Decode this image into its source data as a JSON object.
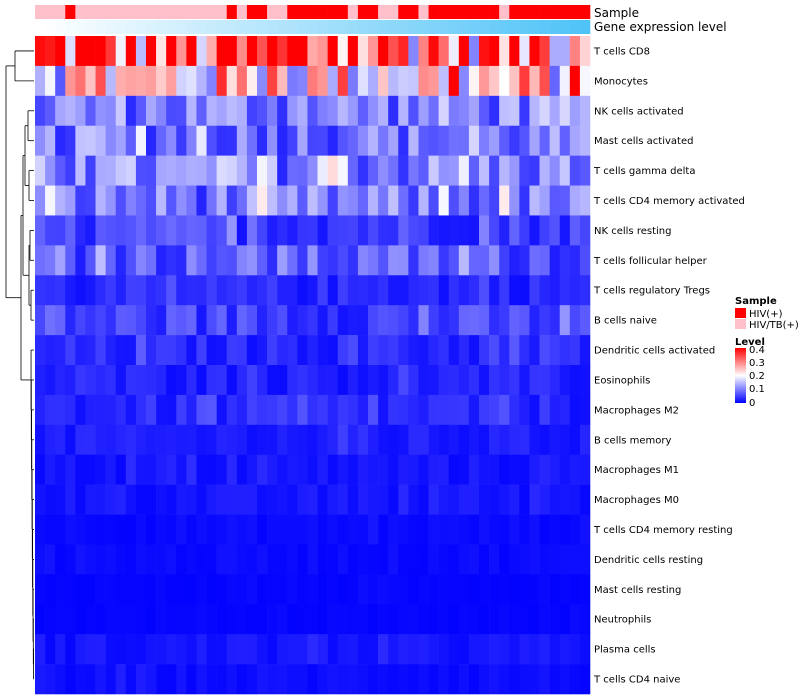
{
  "chart_data": {
    "type": "heatmap",
    "annotations": {
      "sample_label": "Sample",
      "expression_label": "Gene expression level"
    },
    "rows": [
      "T cells CD8",
      "Monocytes",
      "NK cells activated",
      "Mast cells activated",
      "T cells gamma delta",
      "T cells CD4 memory activated",
      "NK cells resting",
      "T cells follicular helper",
      "T cells regulatory  Tregs",
      "B cells naive",
      "Dendritic cells activated",
      "Eosinophils",
      "Macrophages M2",
      "B cells memory",
      "Macrophages M1",
      "Macrophages M0",
      "T cells CD4 memory resting",
      "Dendritic cells resting",
      "Mast cells resting",
      "Neutrophils",
      "Plasma cells",
      "T cells CD4 naive"
    ],
    "row_means": [
      0.32,
      0.22,
      0.1,
      0.09,
      0.1,
      0.09,
      0.05,
      0.07,
      0.03,
      0.05,
      0.03,
      0.025,
      0.03,
      0.02,
      0.015,
      0.015,
      0.008,
      0.008,
      0.004,
      0.004,
      0.015,
      0.01
    ],
    "samples": [
      "HIV/TB(+)",
      "HIV/TB(+)",
      "HIV/TB(+)",
      "HIV(+)",
      "HIV/TB(+)",
      "HIV/TB(+)",
      "HIV/TB(+)",
      "HIV/TB(+)",
      "HIV/TB(+)",
      "HIV/TB(+)",
      "HIV/TB(+)",
      "HIV/TB(+)",
      "HIV/TB(+)",
      "HIV/TB(+)",
      "HIV/TB(+)",
      "HIV/TB(+)",
      "HIV/TB(+)",
      "HIV/TB(+)",
      "HIV/TB(+)",
      "HIV(+)",
      "HIV/TB(+)",
      "HIV(+)",
      "HIV(+)",
      "HIV/TB(+)",
      "HIV/TB(+)",
      "HIV(+)",
      "HIV(+)",
      "HIV(+)",
      "HIV(+)",
      "HIV(+)",
      "HIV(+)",
      "HIV/TB(+)",
      "HIV(+)",
      "HIV(+)",
      "HIV/TB(+)",
      "HIV/TB(+)",
      "HIV(+)",
      "HIV(+)",
      "HIV/TB(+)",
      "HIV(+)",
      "HIV(+)",
      "HIV(+)",
      "HIV(+)",
      "HIV(+)",
      "HIV(+)",
      "HIV(+)",
      "HIV/TB(+)",
      "HIV(+)",
      "HIV(+)",
      "HIV(+)",
      "HIV(+)",
      "HIV(+)",
      "HIV(+)",
      "HIV(+)",
      "HIV(+)"
    ],
    "legend": {
      "sample_title": "Sample",
      "sample_entries": [
        {
          "label": "HIV(+)",
          "color": "#ff0000"
        },
        {
          "label": "HIV/TB(+)",
          "color": "#ffc0cb"
        }
      ],
      "level_title": "Level",
      "level_ticks": [
        "0.4",
        "0.3",
        "0.2",
        "0.1",
        "0"
      ],
      "scale_colors": [
        "#0000ff",
        "#ffffff",
        "#ff0000"
      ],
      "range": [
        0,
        0.4
      ]
    },
    "expression_gradient": [
      "#ffffff",
      "#4fc3f7"
    ],
    "position": "right"
  }
}
